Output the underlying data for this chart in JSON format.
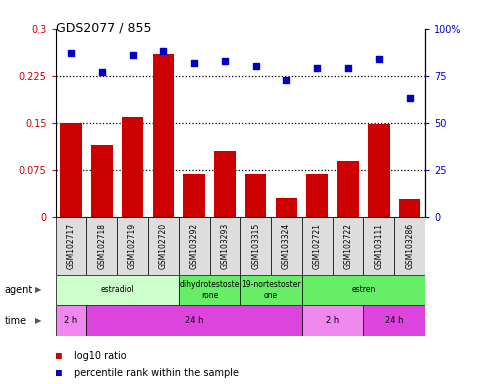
{
  "title": "GDS2077 / 855",
  "samples": [
    "GSM102717",
    "GSM102718",
    "GSM102719",
    "GSM102720",
    "GSM103292",
    "GSM103293",
    "GSM103315",
    "GSM103324",
    "GSM102721",
    "GSM102722",
    "GSM103111",
    "GSM103286"
  ],
  "log10_ratio": [
    0.15,
    0.115,
    0.16,
    0.26,
    0.068,
    0.105,
    0.068,
    0.03,
    0.068,
    0.09,
    0.148,
    0.028
  ],
  "percentile": [
    87,
    77,
    86,
    88,
    82,
    83,
    80,
    73,
    79,
    79,
    84,
    63
  ],
  "bar_color": "#cc0000",
  "dot_color": "#0000cc",
  "ylim_left": [
    0,
    0.3
  ],
  "ylim_right": [
    0,
    100
  ],
  "yticks_left": [
    0,
    0.075,
    0.15,
    0.225,
    0.3
  ],
  "yticks_right": [
    0,
    25,
    50,
    75,
    100
  ],
  "ytick_labels_left": [
    "0",
    "0.075",
    "0.15",
    "0.225",
    "0.3"
  ],
  "ytick_labels_right": [
    "0",
    "25",
    "50",
    "75",
    "100%"
  ],
  "hlines": [
    0.075,
    0.15,
    0.225
  ],
  "agent_groups": [
    {
      "label": "estradiol",
      "start": 0,
      "end": 4,
      "color": "#ccffcc"
    },
    {
      "label": "dihydrotestoste\nrone",
      "start": 4,
      "end": 6,
      "color": "#66ee66"
    },
    {
      "label": "19-nortestoster\none",
      "start": 6,
      "end": 8,
      "color": "#66ee66"
    },
    {
      "label": "estren",
      "start": 8,
      "end": 12,
      "color": "#66ee66"
    }
  ],
  "time_groups": [
    {
      "label": "2 h",
      "start": 0,
      "end": 1,
      "color": "#ee88ee"
    },
    {
      "label": "24 h",
      "start": 1,
      "end": 8,
      "color": "#dd44dd"
    },
    {
      "label": "2 h",
      "start": 8,
      "end": 10,
      "color": "#ee88ee"
    },
    {
      "label": "24 h",
      "start": 10,
      "end": 12,
      "color": "#dd44dd"
    }
  ],
  "sample_bg": "#dddddd",
  "legend_bar_label": "log10 ratio",
  "legend_dot_label": "percentile rank within the sample",
  "agent_label": "agent",
  "time_label": "time"
}
